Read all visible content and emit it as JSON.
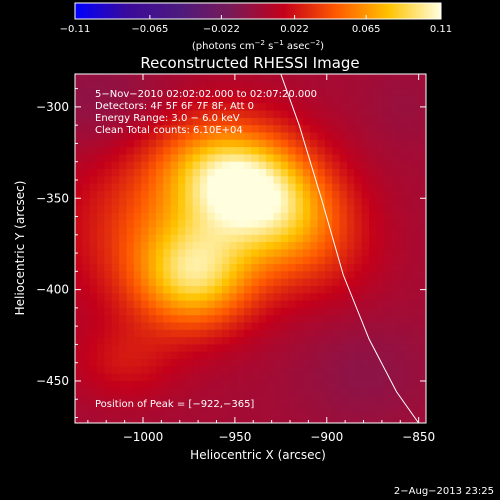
{
  "chart_data": {
    "type": "heatmap",
    "title": "Reconstructed RHESSI Image",
    "xlabel": "Heliocentric X (arcsec)",
    "ylabel": "Heliocentric Y (arcsec)",
    "xlim": [
      -1037,
      -846
    ],
    "ylim": [
      -473,
      -282
    ],
    "x_ticks": [
      -1000,
      -950,
      -900,
      -850
    ],
    "x_tick_labels": [
      "−1000",
      "−950",
      "−900",
      "−850"
    ],
    "y_ticks": [
      -300,
      -350,
      -400,
      -450
    ],
    "y_tick_labels": [
      "−300",
      "−350",
      "−400",
      "−450"
    ],
    "colorbar": {
      "min": -0.11,
      "max": 0.11,
      "ticks": [
        -0.11,
        -0.065,
        -0.022,
        0.022,
        0.065,
        0.11
      ],
      "tick_labels": [
        "−0.11",
        "−0.065",
        "−0.022",
        "0.022",
        "0.065",
        "0.11"
      ],
      "units_prefix": "(photons cm",
      "units_exp1": "−2",
      "units_mid": " s",
      "units_exp2": "−1",
      "units_mid2": " asec",
      "units_exp3": "−2",
      "units_suffix": ")",
      "stops": [
        "#0000ff",
        "#3a0a9a",
        "#4d1a7e",
        "#7a1a56",
        "#c4001a",
        "#ff5a00",
        "#ffc300",
        "#ffffe0"
      ]
    },
    "annotations": [
      "5−Nov−2010 02:02:02.000 to 02:07:20.000",
      "Detectors: 4F 5F 6F 7F 8F, Att 0",
      "Energy Range: 3.0 − 6.0 keV",
      "Clean    Total counts: 6.10E+04"
    ],
    "peak_label": "Position of Peak = [−922,−365]",
    "peak": {
      "x": -922,
      "y": -365
    },
    "limb_curve": {
      "x": [
        -925,
        -915,
        -903,
        -891,
        -877,
        -862,
        -850
      ],
      "y": [
        -282,
        -310,
        -350,
        -392,
        -427,
        -456,
        -473
      ]
    },
    "sources": [
      {
        "x": -930,
        "y": -352,
        "sx": 34,
        "sy": 24,
        "amp": 0.072,
        "rot": -40
      },
      {
        "x": -972,
        "y": -393,
        "sx": 22,
        "sy": 20,
        "amp": 0.066,
        "rot": 0
      },
      {
        "x": -953,
        "y": -340,
        "sx": 26,
        "sy": 18,
        "amp": 0.045,
        "rot": -20
      },
      {
        "x": -985,
        "y": -365,
        "sx": 38,
        "sy": 34,
        "amp": 0.04,
        "rot": 0
      },
      {
        "x": -1010,
        "y": -440,
        "sx": 20,
        "sy": 15,
        "amp": 0.018,
        "rot": 0
      },
      {
        "x": -1020,
        "y": -300,
        "sx": 30,
        "sy": 20,
        "amp": -0.012,
        "rot": 0
      },
      {
        "x": -880,
        "y": -445,
        "sx": 25,
        "sy": 22,
        "amp": -0.01,
        "rot": 0
      },
      {
        "x": -858,
        "y": -300,
        "sx": 15,
        "sy": 15,
        "amp": -0.005,
        "rot": 0
      }
    ],
    "background": 0.002,
    "grid": false,
    "legend": "none"
  },
  "footer": {
    "timestamp": "2−Aug−2013 23:25"
  }
}
